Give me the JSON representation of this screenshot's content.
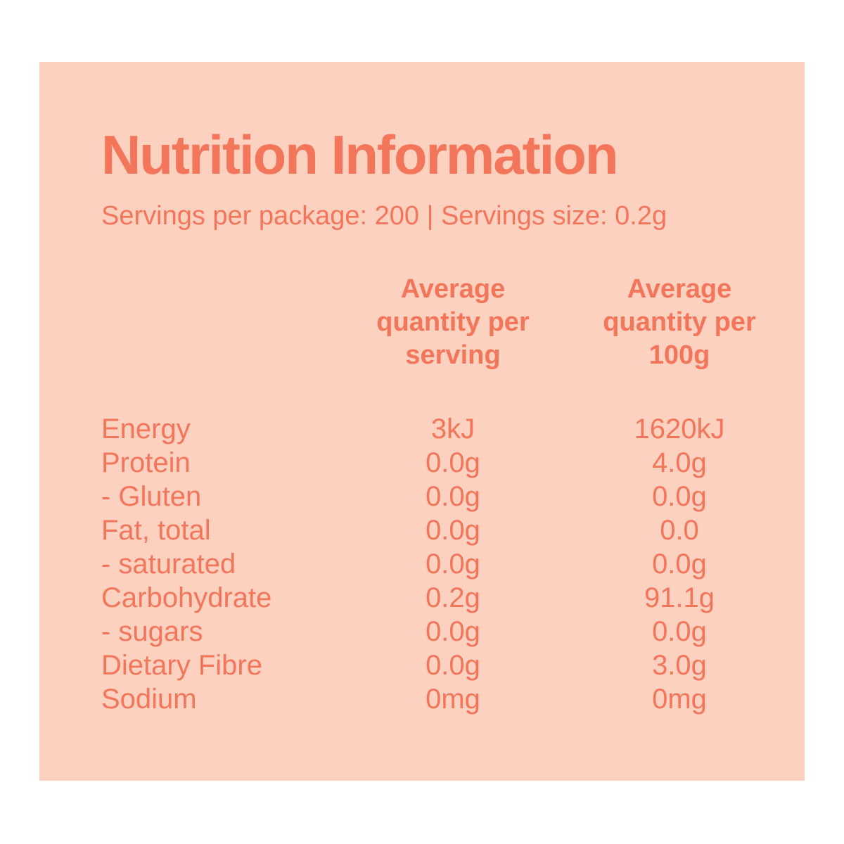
{
  "colors": {
    "background": "#ffffff",
    "panel": "#fcd1c0",
    "text": "#f3755a"
  },
  "title": "Nutrition Information",
  "servings_line": "Servings per package: 200  |  Servings size: 0.2g",
  "table": {
    "header_per_serving": "Average\nquantity per\nserving",
    "header_per_100g": "Average\nquantity per\n100g",
    "rows": [
      {
        "label": "Energy",
        "per_serving": "3kJ",
        "per_100g": "1620kJ"
      },
      {
        "label": "Protein",
        "per_serving": "0.0g",
        "per_100g": "4.0g"
      },
      {
        "label": "- Gluten",
        "per_serving": "0.0g",
        "per_100g": "0.0g"
      },
      {
        "label": "Fat, total",
        "per_serving": "0.0g",
        "per_100g": "0.0"
      },
      {
        "label": "- saturated",
        "per_serving": "0.0g",
        "per_100g": "0.0g"
      },
      {
        "label": "Carbohydrate",
        "per_serving": "0.2g",
        "per_100g": "91.1g"
      },
      {
        "label": "- sugars",
        "per_serving": "0.0g",
        "per_100g": "0.0g"
      },
      {
        "label": "Dietary Fibre",
        "per_serving": "0.0g",
        "per_100g": "3.0g"
      },
      {
        "label": "Sodium",
        "per_serving": "0mg",
        "per_100g": "0mg"
      }
    ]
  }
}
